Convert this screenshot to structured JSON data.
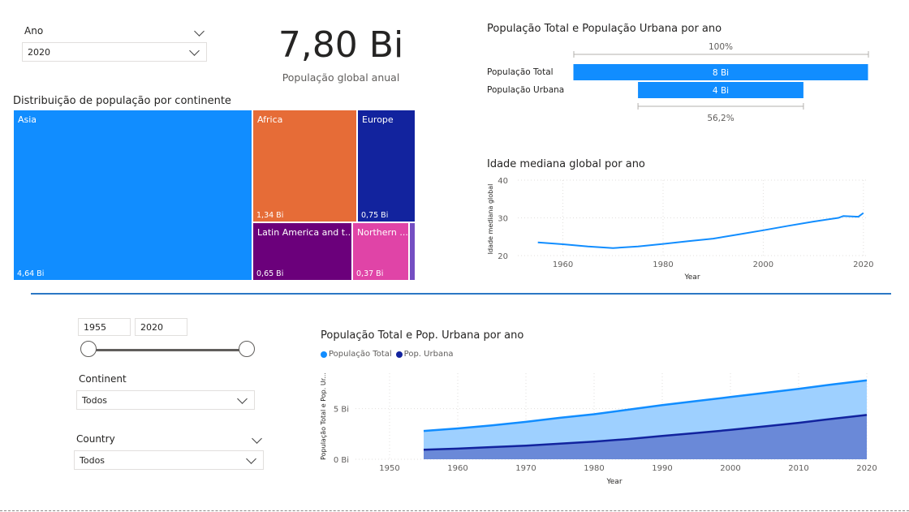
{
  "ano_slicer": {
    "title": "Ano",
    "selected": "2020"
  },
  "kpi": {
    "value": "7,80 Bi",
    "label": "População global anual"
  },
  "treemap": {
    "title": "Distribuição de população por continente",
    "cells": [
      {
        "name": "Asia",
        "value": "4,64 Bi",
        "color": "#118DFF"
      },
      {
        "name": "Africa",
        "value": "1,34 Bi",
        "color": "#E66C37"
      },
      {
        "name": "Europe",
        "value": "0,75 Bi",
        "color": "#12239E"
      },
      {
        "name": "Latin America and t...",
        "value": "0,65 Bi",
        "color": "#6B007B"
      },
      {
        "name": "Northern ...",
        "value": "0,37 Bi",
        "color": "#E044A7"
      },
      {
        "name": "",
        "value": "",
        "color": "#744EC2"
      }
    ]
  },
  "funnel": {
    "title": "População Total e População Urbana por ano",
    "top_pct": "100%",
    "bottom_pct": "56,2%",
    "rows": [
      {
        "label": "População Total",
        "value_label": "8 Bi",
        "value": 7.8
      },
      {
        "label": "População Urbana",
        "value_label": "4 Bi",
        "value": 4.38
      }
    ],
    "color": "#118DFF"
  },
  "median_age_chart": {
    "title": "Idade mediana global por ano",
    "xlabel": "Year",
    "ylabel": "Idade mediana global",
    "color": "#118DFF"
  },
  "year_range": {
    "start": "1955",
    "end": "2020"
  },
  "continent_slicer": {
    "title": "Continent",
    "selected": "Todos"
  },
  "country_slicer": {
    "title": "Country",
    "selected": "Todos"
  },
  "area_chart": {
    "title": "População Total e Pop. Urbana por ano",
    "legend": [
      "População Total",
      "Pop. Urbana"
    ],
    "xlabel": "Year",
    "ylabel": "População Total e Pop. Ur..."
  },
  "chart_data": [
    {
      "type": "line",
      "title": "Idade mediana global por ano",
      "xlabel": "Year",
      "ylabel": "Idade mediana global",
      "x": [
        1955,
        1960,
        1965,
        1970,
        1975,
        1980,
        1985,
        1990,
        1995,
        2000,
        2005,
        2010,
        2015,
        2016,
        2019,
        2020
      ],
      "series": [
        {
          "values": [
            23.5,
            23.0,
            22.4,
            22.0,
            22.4,
            23.1,
            23.8,
            24.5,
            25.6,
            26.7,
            27.9,
            29.0,
            30.0,
            30.5,
            30.3,
            31.3
          ]
        }
      ],
      "xlim": [
        1951,
        2021
      ],
      "ylim": [
        20,
        40
      ],
      "xticks": [
        1960,
        1980,
        2000,
        2020
      ],
      "yticks": [
        20,
        30,
        40
      ],
      "grid": true
    },
    {
      "type": "area",
      "title": "População Total e Pop. Urbana por ano",
      "xlabel": "Year",
      "ylabel": "População Total e Pop. Ur...",
      "x": [
        1955,
        1960,
        1965,
        1970,
        1975,
        1980,
        1985,
        1990,
        1995,
        2000,
        2005,
        2010,
        2015,
        2020
      ],
      "series": [
        {
          "name": "População Total",
          "color": "#118DFF",
          "fill": "#9ED0FF",
          "values": [
            2.8,
            3.05,
            3.35,
            3.7,
            4.1,
            4.45,
            4.9,
            5.35,
            5.75,
            6.15,
            6.55,
            6.95,
            7.4,
            7.8
          ]
        },
        {
          "name": "Pop. Urbana",
          "color": "#12239E",
          "fill": "#6A89D8",
          "values": [
            0.95,
            1.05,
            1.2,
            1.35,
            1.55,
            1.75,
            2.0,
            2.3,
            2.6,
            2.9,
            3.25,
            3.6,
            4.0,
            4.38
          ]
        }
      ],
      "xlim": [
        1945,
        2020
      ],
      "ylim": [
        0,
        8.5
      ],
      "xticks": [
        1950,
        1960,
        1970,
        1980,
        1990,
        2000,
        2010,
        2020
      ],
      "yticks": [
        0,
        5
      ],
      "ytick_labels": [
        "0 Bi",
        "5 Bi"
      ],
      "grid": true,
      "legend_position": "top-left"
    }
  ]
}
